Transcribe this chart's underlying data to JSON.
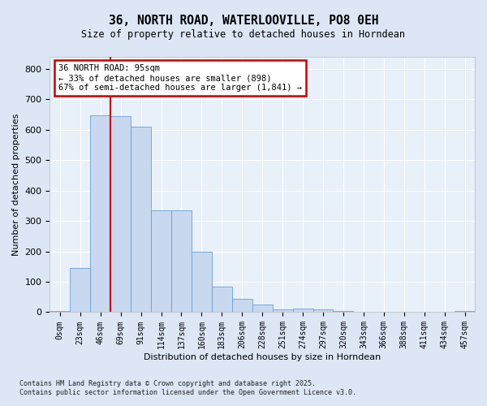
{
  "title": "36, NORTH ROAD, WATERLOOVILLE, PO8 0EH",
  "subtitle": "Size of property relative to detached houses in Horndean",
  "xlabel": "Distribution of detached houses by size in Horndean",
  "ylabel": "Number of detached properties",
  "bar_labels": [
    "0sqm",
    "23sqm",
    "46sqm",
    "69sqm",
    "91sqm",
    "114sqm",
    "137sqm",
    "160sqm",
    "183sqm",
    "206sqm",
    "228sqm",
    "251sqm",
    "274sqm",
    "297sqm",
    "320sqm",
    "343sqm",
    "366sqm",
    "388sqm",
    "411sqm",
    "434sqm",
    "457sqm"
  ],
  "bar_values": [
    5,
    145,
    648,
    645,
    610,
    335,
    335,
    198,
    83,
    43,
    25,
    10,
    13,
    10,
    5,
    0,
    0,
    0,
    0,
    0,
    5
  ],
  "bar_color": "#c8d8ef",
  "bar_edge_color": "#6a9fd8",
  "vline_color": "#cc0000",
  "vline_x": 3.0,
  "annotation_title": "36 NORTH ROAD: 95sqm",
  "annotation_line1": "← 33% of detached houses are smaller (898)",
  "annotation_line2": "67% of semi-detached houses are larger (1,841) →",
  "annotation_box_color": "#cc0000",
  "ylim": [
    0,
    840
  ],
  "yticks": [
    0,
    100,
    200,
    300,
    400,
    500,
    600,
    700,
    800
  ],
  "footer1": "Contains HM Land Registry data © Crown copyright and database right 2025.",
  "footer2": "Contains public sector information licensed under the Open Government Licence v3.0.",
  "bg_color": "#dce6f5",
  "plot_bg_color": "#e8f0fa"
}
